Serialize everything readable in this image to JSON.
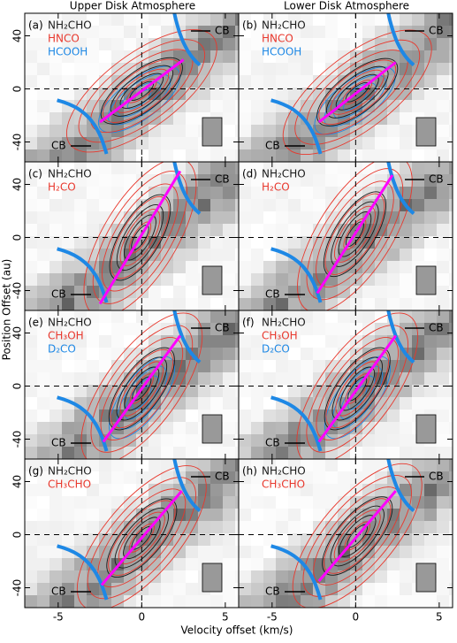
{
  "chart_data": {
    "type": "pv",
    "column_titles": [
      "Upper Disk Atmosphere",
      "Lower Disk Atmosphere"
    ],
    "xlabel": "Velocity offset (km/s)",
    "ylabel": "Position Offset (au)",
    "xlim": [
      -7,
      5.8
    ],
    "ylim": [
      -55,
      57
    ],
    "xticks": [
      -5,
      0,
      5
    ],
    "yticks": [
      -40,
      0,
      40
    ],
    "cb_label": "CB",
    "panels": [
      {
        "label": "(a)",
        "species": [
          {
            "name": "NH₂CHO",
            "color": "#1a1a1a"
          },
          {
            "name": "HNCO",
            "color": "#e8382d"
          },
          {
            "name": "HCOOH",
            "color": "#1e88e5"
          }
        ]
      },
      {
        "label": "(b)",
        "species": [
          {
            "name": "NH₂CHO",
            "color": "#1a1a1a"
          },
          {
            "name": "HNCO",
            "color": "#e8382d"
          },
          {
            "name": "HCOOH",
            "color": "#1e88e5"
          }
        ]
      },
      {
        "label": "(c)",
        "species": [
          {
            "name": "NH₂CHO",
            "color": "#1a1a1a"
          },
          {
            "name": "H₂CO",
            "color": "#e8382d"
          }
        ]
      },
      {
        "label": "(d)",
        "species": [
          {
            "name": "NH₂CHO",
            "color": "#1a1a1a"
          },
          {
            "name": "H₂CO",
            "color": "#e8382d"
          }
        ]
      },
      {
        "label": "(e)",
        "species": [
          {
            "name": "NH₂CHO",
            "color": "#1a1a1a"
          },
          {
            "name": "CH₃OH",
            "color": "#e8382d"
          },
          {
            "name": "D₂CO",
            "color": "#1e88e5"
          }
        ]
      },
      {
        "label": "(f)",
        "species": [
          {
            "name": "NH₂CHO",
            "color": "#1a1a1a"
          },
          {
            "name": "CH₃OH",
            "color": "#e8382d"
          },
          {
            "name": "D₂CO",
            "color": "#1e88e5"
          }
        ]
      },
      {
        "label": "(g)",
        "species": [
          {
            "name": "NH₂CHO",
            "color": "#1a1a1a"
          },
          {
            "name": "CH₃CHO",
            "color": "#e8382d"
          }
        ]
      },
      {
        "label": "(h)",
        "species": [
          {
            "name": "NH₂CHO",
            "color": "#1a1a1a"
          },
          {
            "name": "CH₃CHO",
            "color": "#e8382d"
          }
        ]
      }
    ]
  }
}
